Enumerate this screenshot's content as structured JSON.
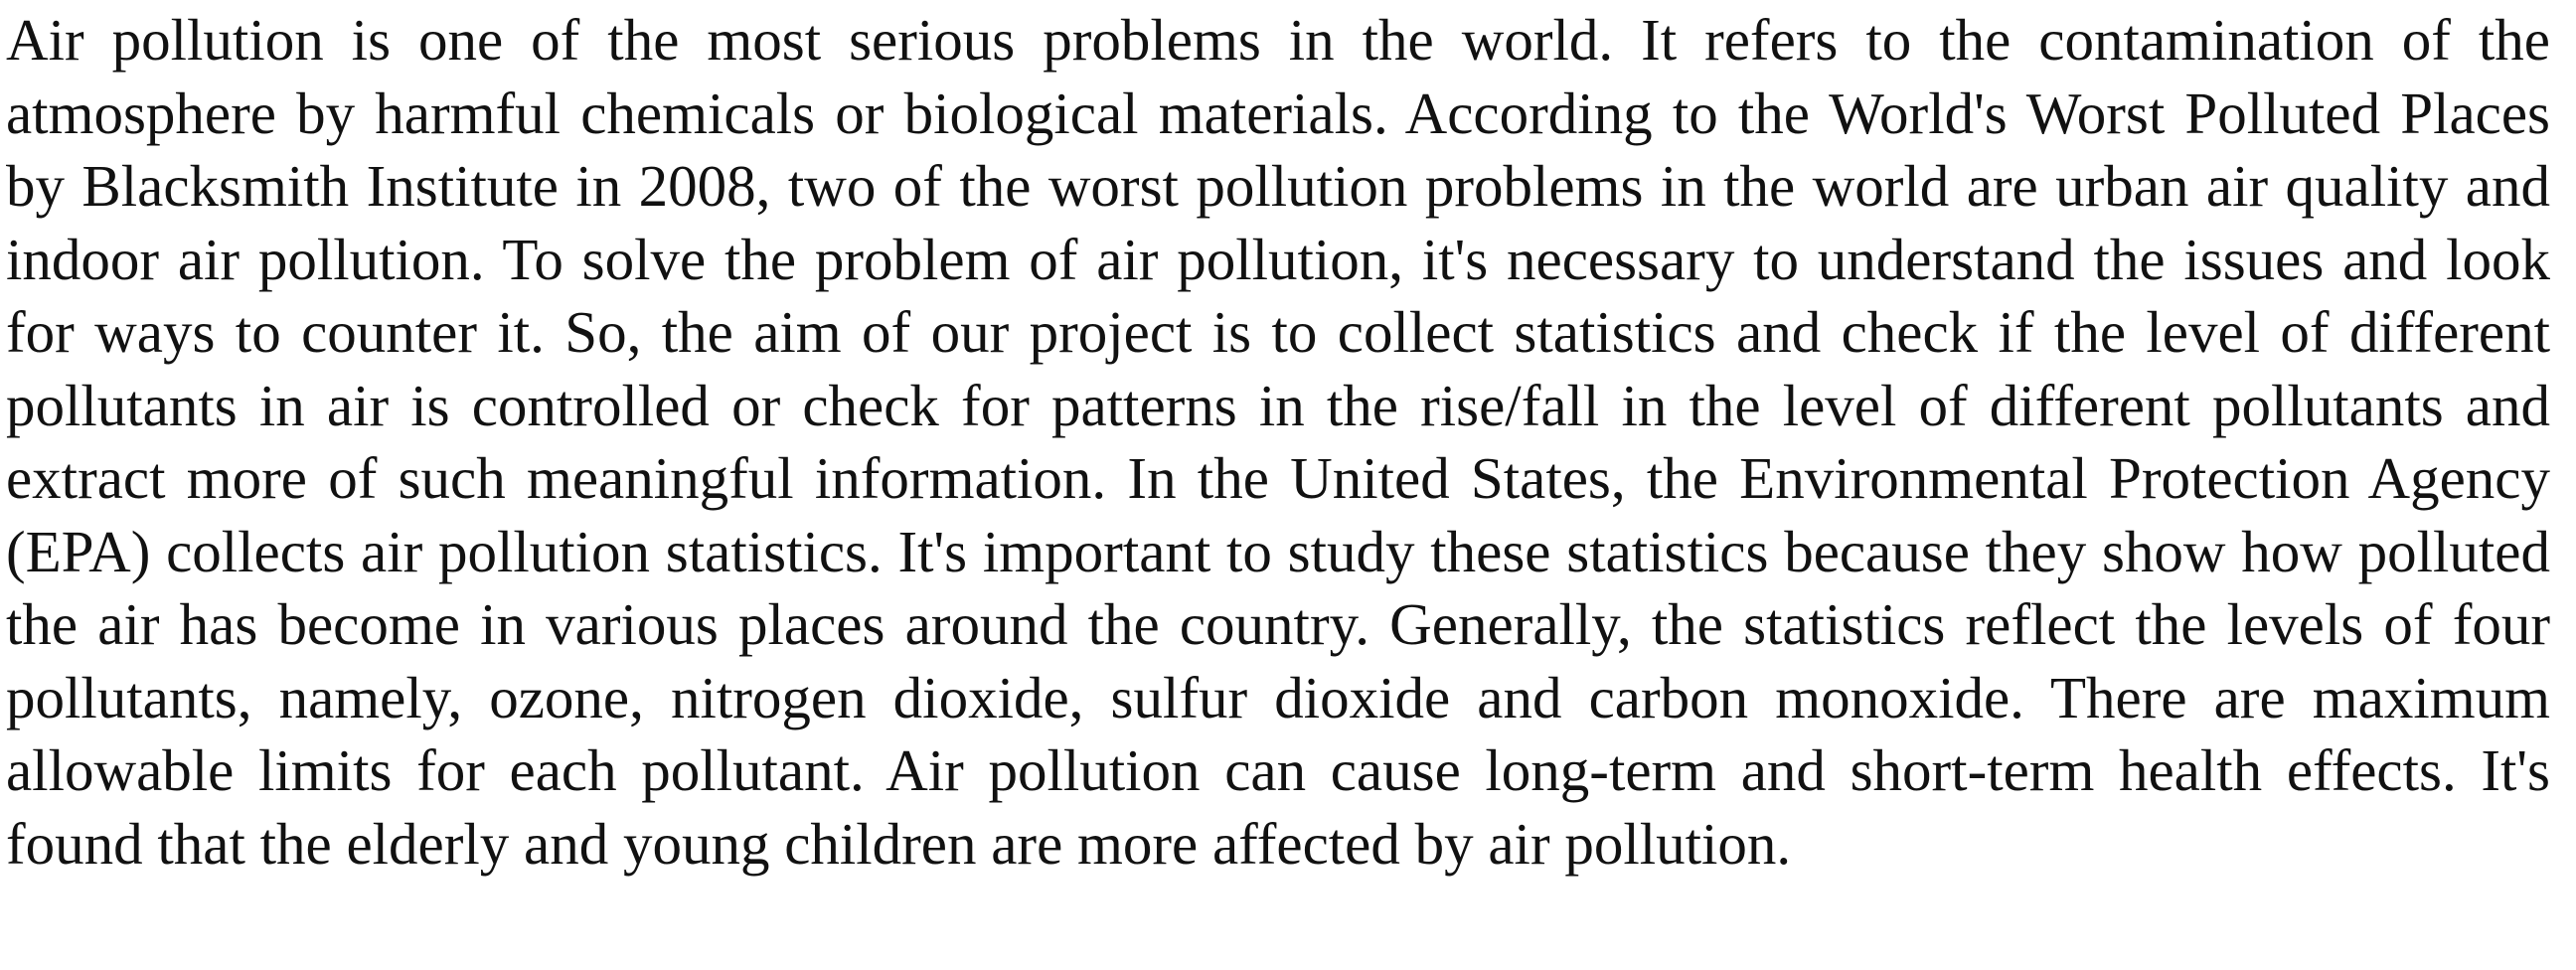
{
  "document": {
    "paragraph": "Air pollution is one of the most serious problems in the world. It refers to the contamination of the atmosphere by harmful chemicals or biological materials. According to the World's Worst Polluted Places by Blacksmith Institute in 2008, two of the worst pollution problems in the world are urban air quality and indoor air pollution. To solve the problem of air pollution, it's necessary to understand the issues and look for ways to counter it. So, the aim of our project is to collect statistics and check if the level of different pollutants in air is controlled or check for patterns in the rise/fall in the level of different pollutants and extract more of such meaningful information. In the United States, the Environmental Protection Agency (EPA) collects air pollution statistics. It's important to study these statistics because they show how polluted the air has become in various places around the country. Generally, the statistics reflect the levels of four pollutants, namely, ozone, nitrogen dioxide, sulfur dioxide and carbon monoxide. There are maximum allowable limits for each pollutant. Air pollution can cause long-term and short-term health effects. It's found that the elderly and young children are more affected by air pollution."
  }
}
